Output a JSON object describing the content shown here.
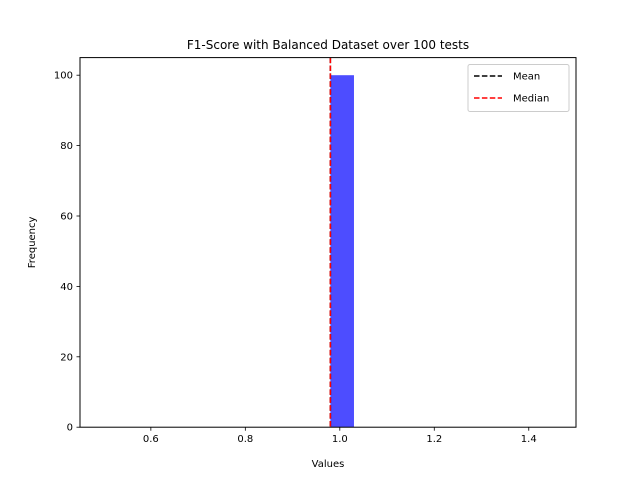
{
  "chart_data": {
    "type": "bar",
    "title": "F1-Score with Balanced Dataset over 100 tests",
    "xlabel": "Values",
    "ylabel": "Frequency",
    "xlim": [
      0.45,
      1.5
    ],
    "ylim": [
      0,
      105
    ],
    "x_ticks": [
      0.6,
      0.8,
      1.0,
      1.2,
      1.4
    ],
    "x_tick_labels": [
      "0.6",
      "0.8",
      "1.0",
      "1.2",
      "1.4"
    ],
    "y_ticks": [
      0,
      20,
      40,
      60,
      80,
      100
    ],
    "y_tick_labels": [
      "0",
      "20",
      "40",
      "60",
      "80",
      "100"
    ],
    "grid": false,
    "bins": [
      {
        "start": 0.98,
        "end": 1.03,
        "count": 100
      }
    ],
    "bar_color": "#4d4dff",
    "lines": [
      {
        "name": "Mean",
        "x": 0.98,
        "color": "#000000",
        "style": "dashed"
      },
      {
        "name": "Median",
        "x": 0.98,
        "color": "#ff0000",
        "style": "dashed"
      }
    ],
    "legend_position": "top-right"
  }
}
